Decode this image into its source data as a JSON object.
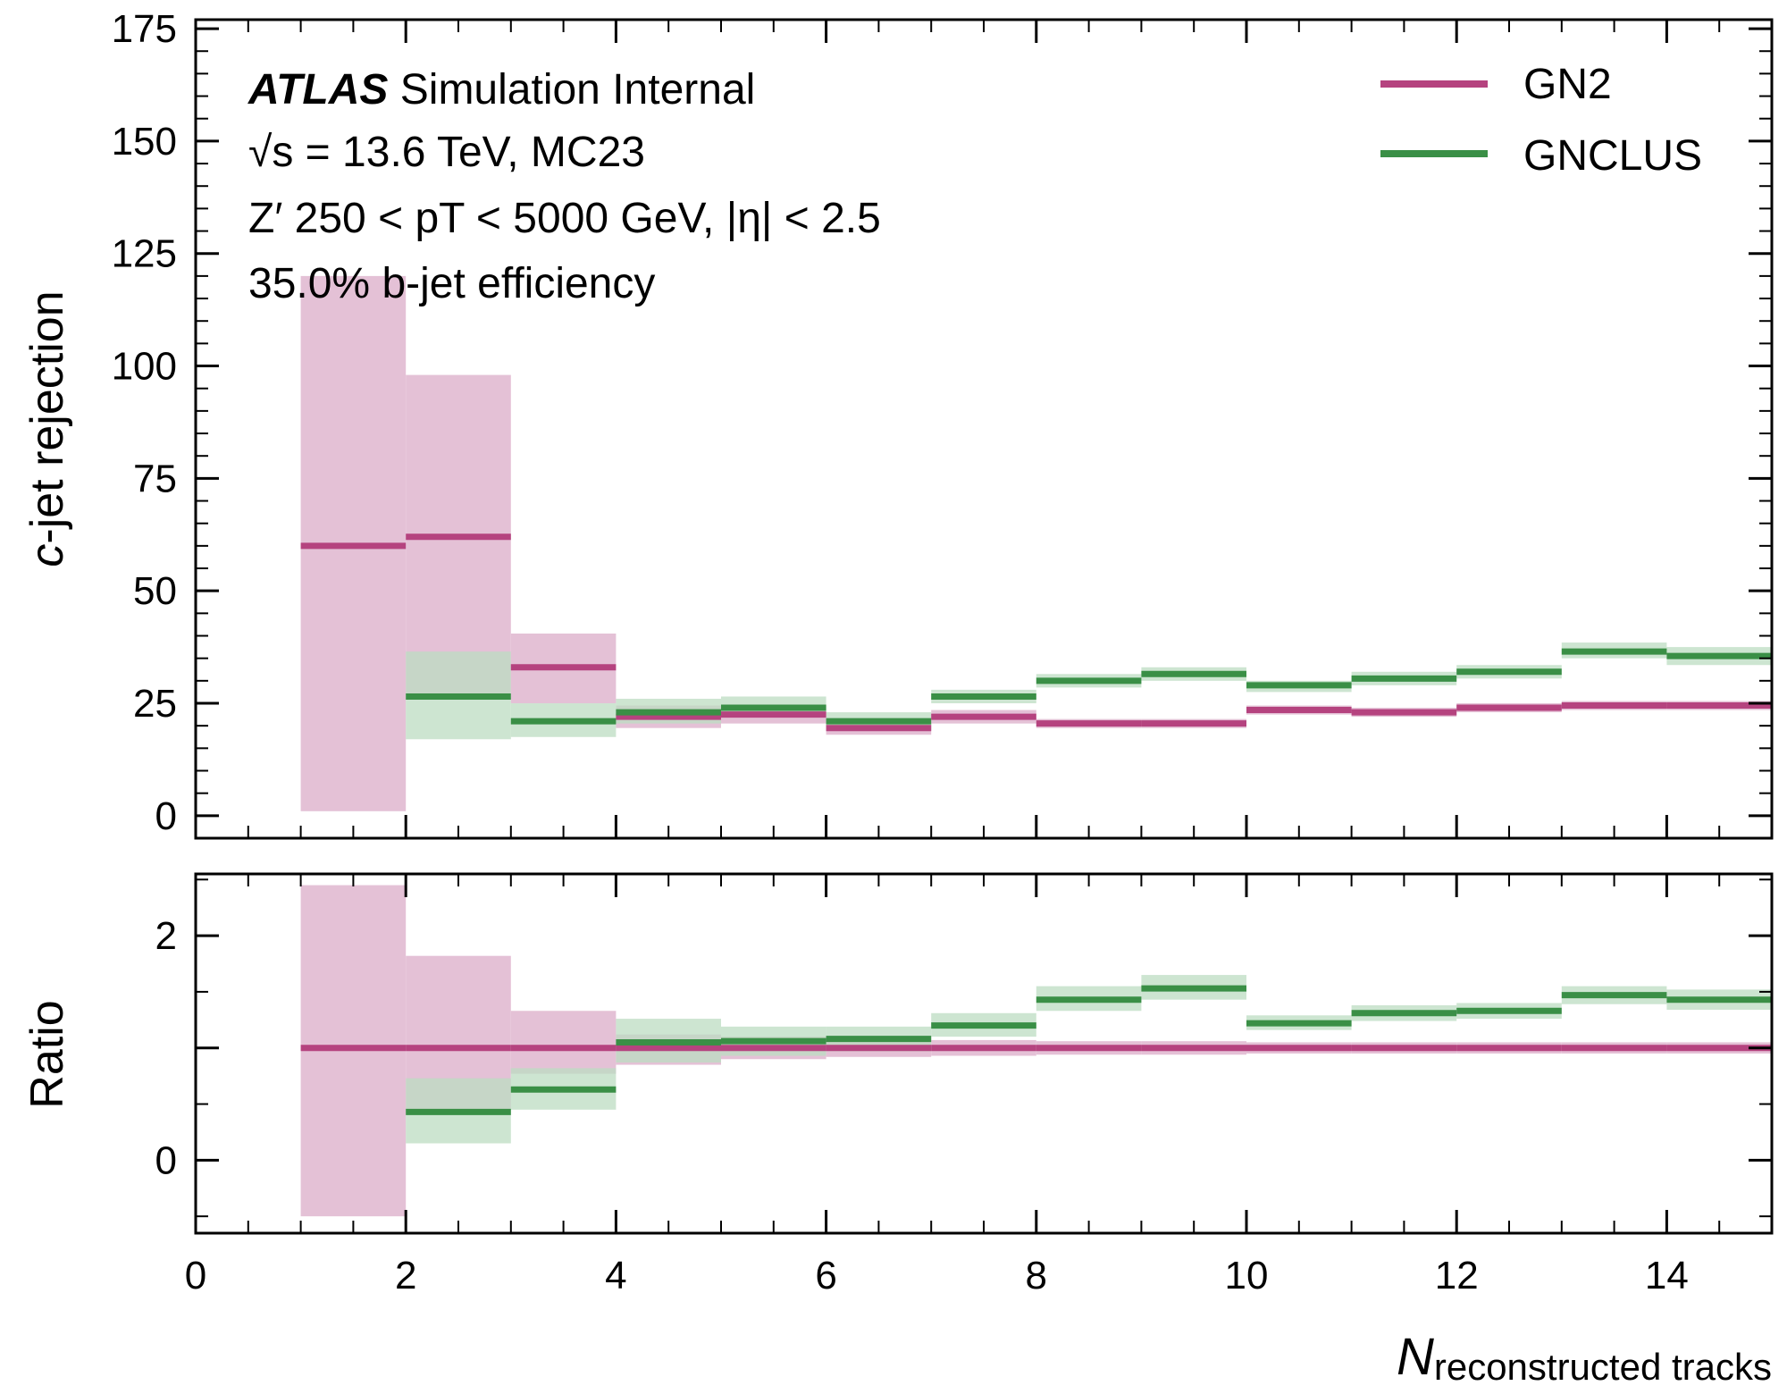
{
  "chart_data": {
    "type": "step",
    "colors": {
      "GN2": "#b5437f",
      "GNCLUS": "#3a8f46",
      "GN2_band": "#e4c1d6",
      "GNCLUS_band": "#bcdcc1"
    },
    "annotations": {
      "line1_bold": "ATLAS",
      "line1_rest": " Simulation Internal",
      "line2": "√s = 13.6 TeV, MC23",
      "line3": "Z′ 250 < pT < 5000 GeV, |η| < 2.5",
      "line4": "35.0% b-jet efficiency"
    },
    "legend": {
      "placement": "top-right",
      "entries": [
        "GN2",
        "GNCLUS"
      ]
    },
    "xlabel_main": "N",
    "xlabel_sub": "reconstructed tracks",
    "xlim": [
      0,
      15
    ],
    "x_ticks": [
      0,
      2,
      4,
      6,
      8,
      10,
      12,
      14
    ],
    "bin_edges": [
      1,
      2,
      3,
      4,
      5,
      6,
      7,
      8,
      9,
      10,
      11,
      12,
      13,
      14,
      15
    ],
    "top_panel": {
      "ylabel_italic": "c",
      "ylabel_rest": "-jet rejection",
      "ylim": [
        -5,
        177
      ],
      "y_ticks": [
        0,
        25,
        50,
        75,
        100,
        125,
        150,
        175
      ],
      "series": [
        {
          "name": "GN2",
          "values": [
            60,
            62,
            33,
            22,
            22.5,
            19.5,
            22,
            20.5,
            20.5,
            23.5,
            23,
            24,
            24.5,
            24.5
          ],
          "lower": [
            1,
            27,
            25,
            19.5,
            20.5,
            18,
            20.5,
            19.5,
            19.5,
            22.5,
            22,
            23,
            23.5,
            23.5
          ],
          "upper": [
            120,
            98,
            40.5,
            24.5,
            24.5,
            21,
            23.5,
            21.5,
            21.5,
            24.5,
            24,
            25,
            25.5,
            25.5
          ]
        },
        {
          "name": "GNCLUS",
          "values": [
            null,
            26.5,
            21,
            23,
            24,
            21,
            26.5,
            30,
            31.5,
            29,
            30.5,
            32,
            36.5,
            35.5
          ],
          "lower": [
            null,
            17,
            17.5,
            20.5,
            22,
            19,
            25,
            28.5,
            30,
            27.5,
            29,
            30.5,
            35,
            33.5
          ],
          "upper": [
            null,
            36.5,
            25,
            26,
            26.5,
            23,
            28,
            31.5,
            33,
            30,
            32,
            33.5,
            38.5,
            37.5
          ]
        }
      ]
    },
    "ratio_panel": {
      "ylabel": "Ratio",
      "ylim": [
        -0.65,
        2.55
      ],
      "y_ticks": [
        0,
        2
      ],
      "series": [
        {
          "name": "GN2",
          "values": [
            1,
            1,
            1,
            1,
            1,
            1,
            1,
            1,
            1,
            1,
            1,
            1,
            1,
            1
          ],
          "lower": [
            -0.5,
            0.45,
            0.77,
            0.85,
            0.9,
            0.92,
            0.93,
            0.94,
            0.94,
            0.95,
            0.95,
            0.95,
            0.95,
            0.95
          ],
          "upper": [
            2.45,
            1.82,
            1.33,
            1.12,
            1.1,
            1.07,
            1.07,
            1.06,
            1.06,
            1.05,
            1.05,
            1.05,
            1.05,
            1.05
          ]
        },
        {
          "name": "GNCLUS",
          "values": [
            null,
            0.43,
            0.63,
            1.05,
            1.06,
            1.08,
            1.2,
            1.43,
            1.53,
            1.22,
            1.31,
            1.33,
            1.47,
            1.43
          ],
          "lower": [
            null,
            0.15,
            0.45,
            0.87,
            0.93,
            0.97,
            1.1,
            1.33,
            1.43,
            1.16,
            1.24,
            1.26,
            1.39,
            1.34
          ],
          "upper": [
            null,
            0.73,
            0.82,
            1.26,
            1.19,
            1.19,
            1.31,
            1.55,
            1.65,
            1.29,
            1.38,
            1.4,
            1.55,
            1.52
          ]
        }
      ]
    }
  }
}
